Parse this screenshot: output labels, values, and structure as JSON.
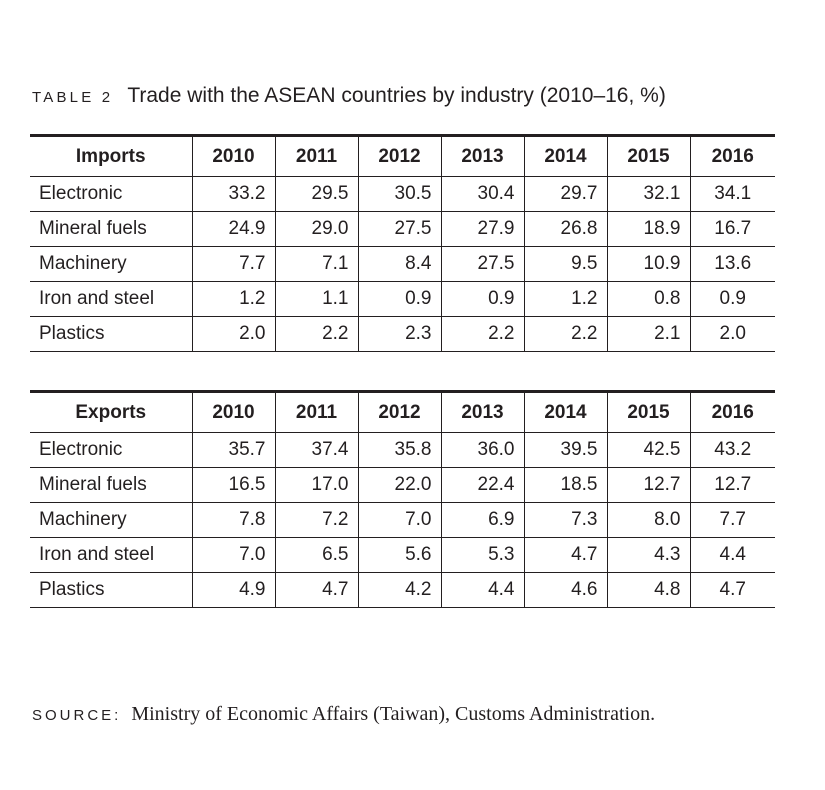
{
  "caption": {
    "label": "TABLE 2",
    "title": "Trade with the ASEAN countries by industry (2010–16, %)"
  },
  "imports": {
    "heading": "Imports",
    "years": [
      "2010",
      "2011",
      "2012",
      "2013",
      "2014",
      "2015",
      "2016"
    ],
    "rows": [
      {
        "label": "Electronic",
        "values": [
          "33.2",
          "29.5",
          "30.5",
          "30.4",
          "29.7",
          "32.1",
          "34.1"
        ]
      },
      {
        "label": "Mineral fuels",
        "values": [
          "24.9",
          "29.0",
          "27.5",
          "27.9",
          "26.8",
          "18.9",
          "16.7"
        ]
      },
      {
        "label": "Machinery",
        "values": [
          "7.7",
          "7.1",
          "8.4",
          "27.5",
          "9.5",
          "10.9",
          "13.6"
        ]
      },
      {
        "label": "Iron and steel",
        "values": [
          "1.2",
          "1.1",
          "0.9",
          "0.9",
          "1.2",
          "0.8",
          "0.9"
        ]
      },
      {
        "label": "Plastics",
        "values": [
          "2.0",
          "2.2",
          "2.3",
          "2.2",
          "2.2",
          "2.1",
          "2.0"
        ]
      }
    ]
  },
  "exports": {
    "heading": "Exports",
    "years": [
      "2010",
      "2011",
      "2012",
      "2013",
      "2014",
      "2015",
      "2016"
    ],
    "rows": [
      {
        "label": "Electronic",
        "values": [
          "35.7",
          "37.4",
          "35.8",
          "36.0",
          "39.5",
          "42.5",
          "43.2"
        ]
      },
      {
        "label": "Mineral fuels",
        "values": [
          "16.5",
          "17.0",
          "22.0",
          "22.4",
          "18.5",
          "12.7",
          "12.7"
        ]
      },
      {
        "label": "Machinery",
        "values": [
          "7.8",
          "7.2",
          "7.0",
          "6.9",
          "7.3",
          "8.0",
          "7.7"
        ]
      },
      {
        "label": "Iron and steel",
        "values": [
          "7.0",
          "6.5",
          "5.6",
          "5.3",
          "4.7",
          "4.3",
          "4.4"
        ]
      },
      {
        "label": "Plastics",
        "values": [
          "4.9",
          "4.7",
          "4.2",
          "4.4",
          "4.6",
          "4.8",
          "4.7"
        ]
      }
    ]
  },
  "source": {
    "label": "SOURCE:",
    "text": "Ministry of Economic Affairs (Taiwan), Customs Administration."
  }
}
